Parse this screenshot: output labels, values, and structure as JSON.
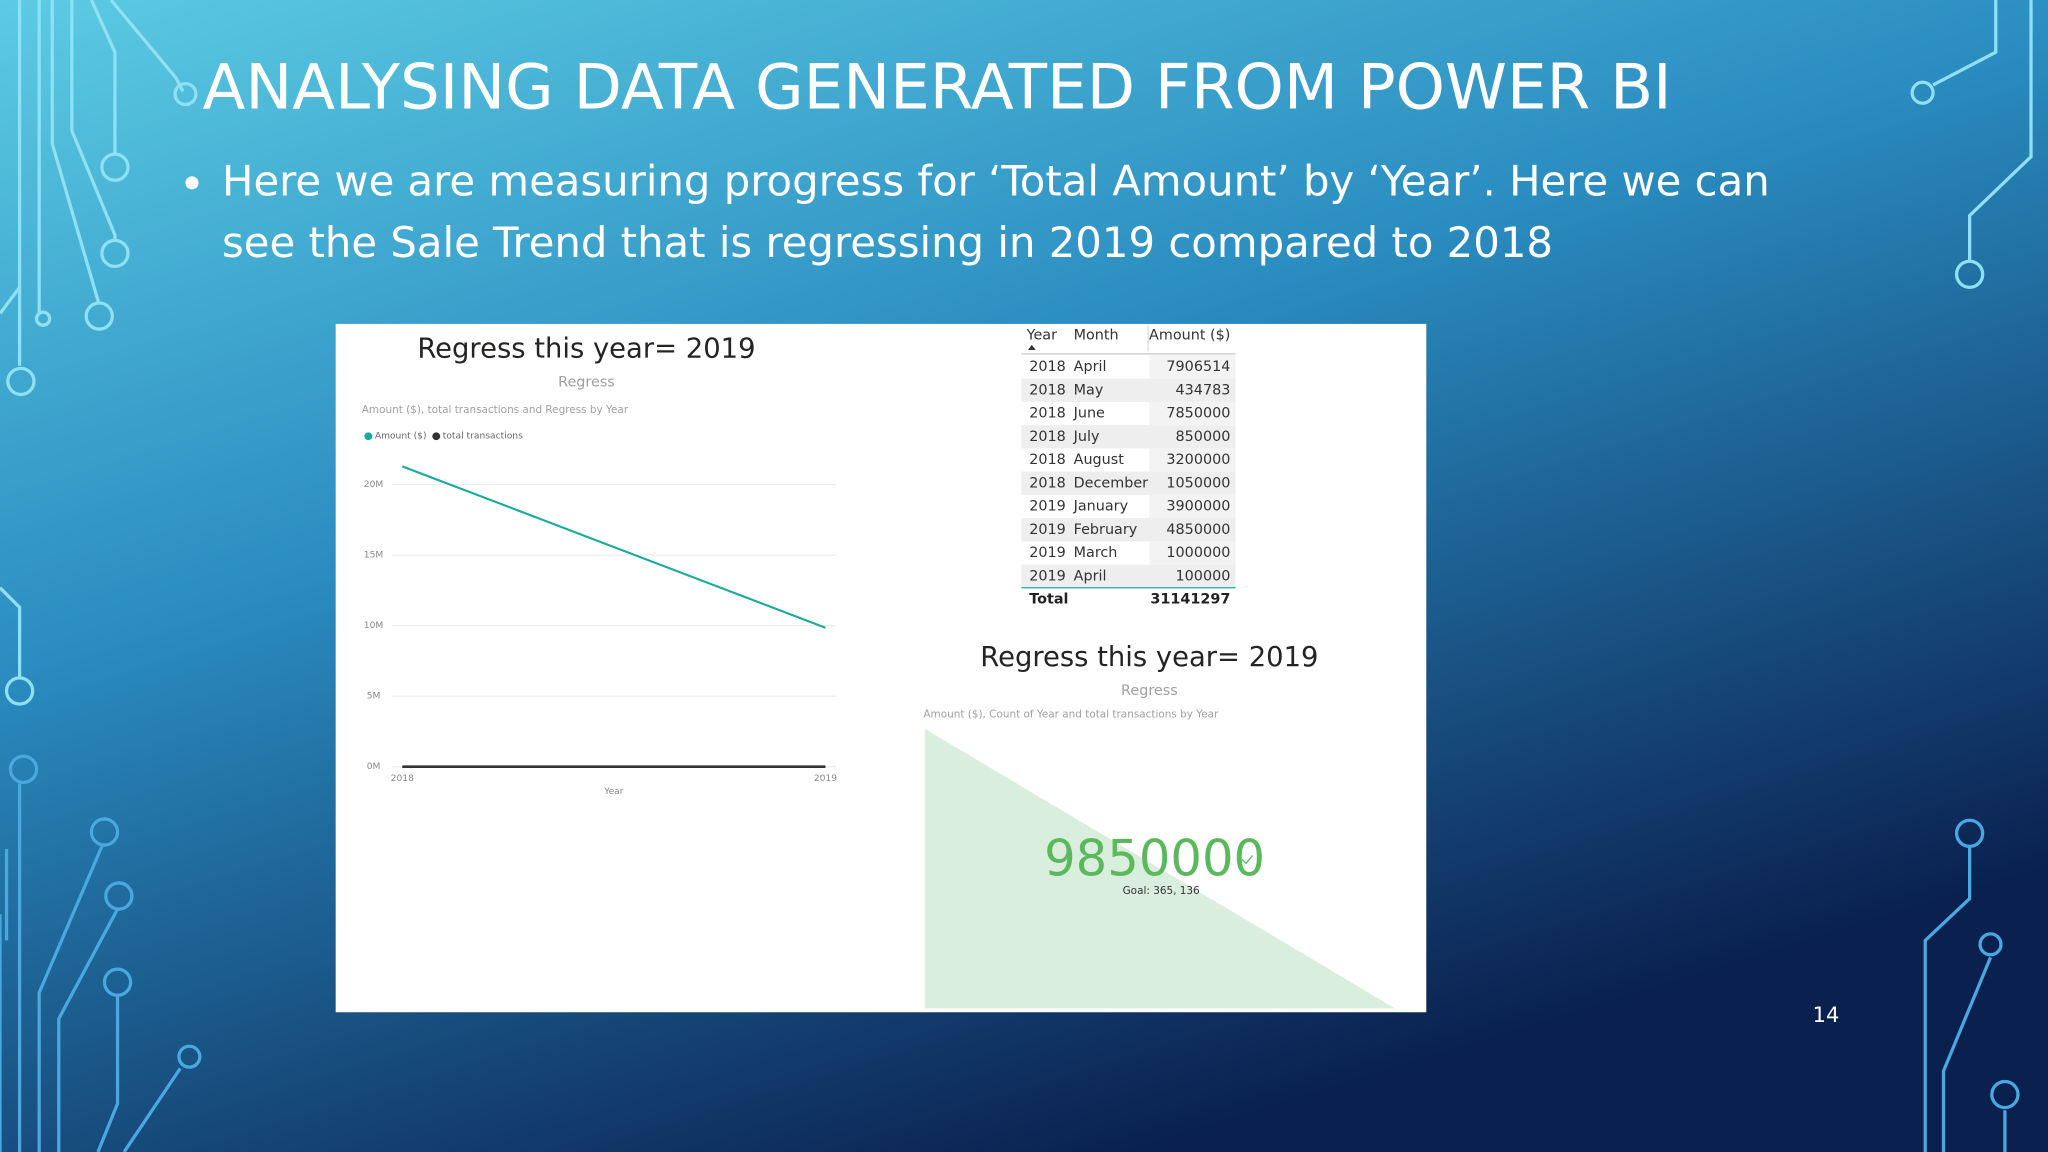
{
  "slide": {
    "title": "ANALYSING DATA GENERATED FROM POWER BI",
    "bullet": [
      "Here we are measuring progress for ‘Total Amount’ by ‘Year’. Here we can",
      "see the Sale Trend that is regressing in 2019 compared to 2018"
    ],
    "page_number": "14"
  },
  "report": {
    "line_chart": {
      "type": "line",
      "title": "Regress this year= 2019",
      "subtitle": "Regress",
      "description": "Amount ($), total transactions and Regress by Year",
      "categories": [
        "2018",
        "2019"
      ],
      "x_label": "Year",
      "series": [
        {
          "name": "Amount ($)",
          "color": "#1aab9b",
          "values": [
            21291297,
            9850000
          ]
        },
        {
          "name": "total transactions",
          "color": "#333333",
          "values": [
            0,
            0
          ]
        }
      ],
      "ylim": [
        0,
        20000000
      ],
      "yticks": [
        {
          "value": 0,
          "label": "0M"
        },
        {
          "value": 5000000,
          "label": "5M"
        },
        {
          "value": 10000000,
          "label": "10M"
        },
        {
          "value": 15000000,
          "label": "15M"
        },
        {
          "value": 20000000,
          "label": "20M"
        }
      ],
      "grid": true
    },
    "table": {
      "headers": [
        "Year",
        "Month",
        "Amount ($)"
      ],
      "rows": [
        [
          "2018",
          "April",
          7906514
        ],
        [
          "2018",
          "May",
          434783
        ],
        [
          "2018",
          "June",
          7850000
        ],
        [
          "2018",
          "July",
          850000
        ],
        [
          "2018",
          "August",
          3200000
        ],
        [
          "2018",
          "December",
          1050000
        ],
        [
          "2019",
          "January",
          3900000
        ],
        [
          "2019",
          "February",
          4850000
        ],
        [
          "2019",
          "March",
          1000000
        ],
        [
          "2019",
          "April",
          100000
        ]
      ],
      "total": [
        "Total",
        31141297
      ]
    },
    "kpi": {
      "title": "Regress this year= 2019",
      "subtitle": "Regress",
      "description": "Amount ($), Count of Year and total transactions by Year",
      "value": 9850000,
      "goal": "Goal: 365, 136"
    }
  }
}
